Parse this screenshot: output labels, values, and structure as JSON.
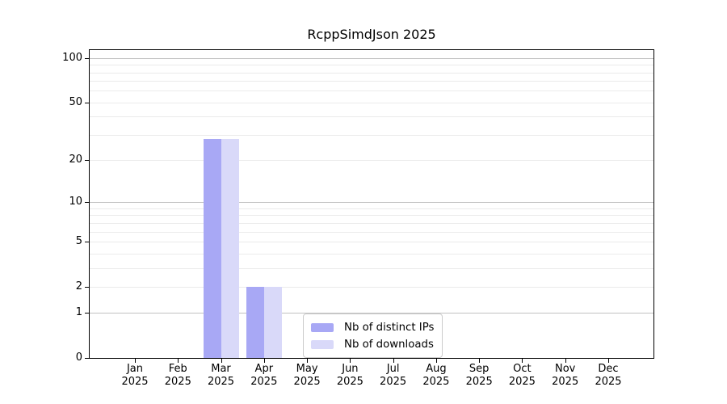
{
  "chart_data": {
    "type": "bar",
    "title": "RcppSimdJson 2025",
    "categories": [
      {
        "month": "Jan",
        "year": "2025"
      },
      {
        "month": "Feb",
        "year": "2025"
      },
      {
        "month": "Mar",
        "year": "2025"
      },
      {
        "month": "Apr",
        "year": "2025"
      },
      {
        "month": "May",
        "year": "2025"
      },
      {
        "month": "Jun",
        "year": "2025"
      },
      {
        "month": "Jul",
        "year": "2025"
      },
      {
        "month": "Aug",
        "year": "2025"
      },
      {
        "month": "Sep",
        "year": "2025"
      },
      {
        "month": "Oct",
        "year": "2025"
      },
      {
        "month": "Nov",
        "year": "2025"
      },
      {
        "month": "Dec",
        "year": "2025"
      }
    ],
    "series": [
      {
        "name": "Nb of distinct IPs",
        "color": "#a8a8f5",
        "values": [
          0,
          0,
          28,
          2,
          0,
          0,
          0,
          0,
          0,
          0,
          0,
          0
        ]
      },
      {
        "name": "Nb of downloads",
        "color": "#d9d9f9",
        "values": [
          0,
          0,
          28,
          2,
          0,
          0,
          0,
          0,
          0,
          0,
          0,
          0
        ]
      }
    ],
    "yscale": "log1p",
    "ylim": [
      0,
      113
    ],
    "yticks": [
      0,
      1,
      2,
      5,
      10,
      20,
      50,
      100
    ],
    "major_gridlines": [
      1,
      10,
      100
    ],
    "minor_gridlines": [
      2,
      3,
      4,
      5,
      6,
      7,
      8,
      9,
      20,
      30,
      40,
      50,
      60,
      70,
      80,
      90
    ],
    "xlabel": "",
    "ylabel": "",
    "grid": true,
    "legend_position": "lower center (inside plot)",
    "colors": {
      "axis": "#000000",
      "major_grid": "#c2c2c2",
      "minor_grid": "#ebebeb",
      "legend_border": "#cccccc",
      "background": "#ffffff"
    }
  }
}
